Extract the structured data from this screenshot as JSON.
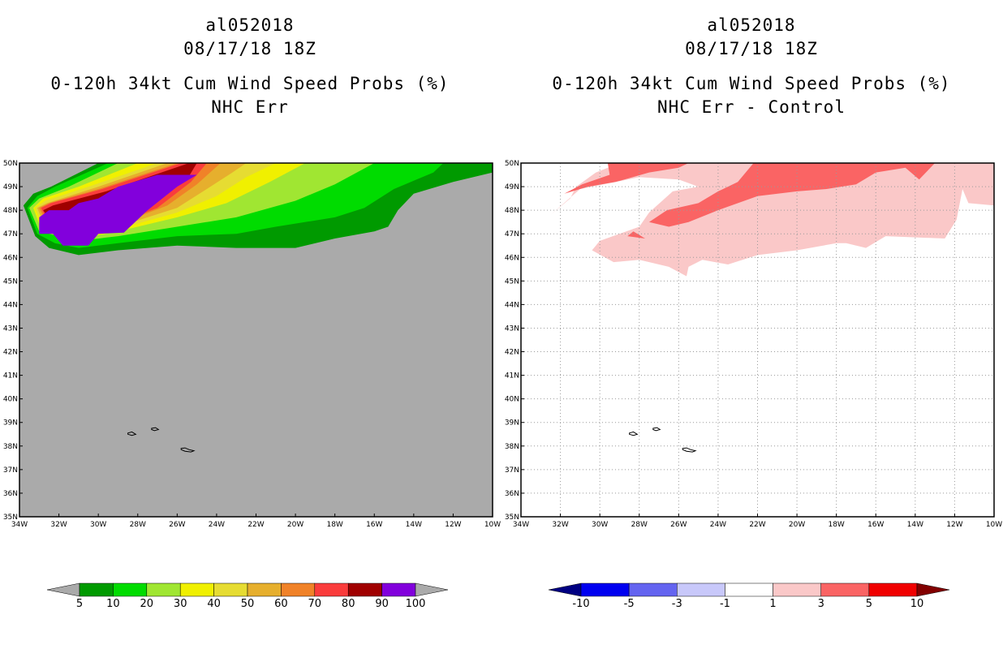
{
  "colors": {
    "land_gray": "#aaaaaa",
    "grid": "#9a9a9a"
  },
  "chart_data": [
    {
      "type": "heatmap",
      "storm_id": "al052018",
      "datetime": "08/17/18 18Z",
      "title": "0-120h 34kt Cum Wind Speed Probs (%)",
      "subtitle": "NHC Err",
      "xlim": [
        -34,
        -10
      ],
      "ylim": [
        35,
        50
      ],
      "x_ticks": [
        "34W",
        "32W",
        "30W",
        "28W",
        "26W",
        "24W",
        "22W",
        "20W",
        "18W",
        "16W",
        "14W",
        "12W",
        "10W"
      ],
      "y_ticks": [
        "35N",
        "36N",
        "37N",
        "38N",
        "39N",
        "40N",
        "41N",
        "42N",
        "43N",
        "44N",
        "45N",
        "46N",
        "47N",
        "48N",
        "49N",
        "50N"
      ],
      "grid": false,
      "colorbar": {
        "labels": [
          "5",
          "10",
          "20",
          "30",
          "40",
          "50",
          "60",
          "70",
          "80",
          "90",
          "100"
        ],
        "colors": [
          "#aaaaaa",
          "#009a00",
          "#00dc00",
          "#a0e632",
          "#f0f000",
          "#e6dc32",
          "#e6af2d",
          "#f08228",
          "#fa3c3c",
          "#a00000",
          "#8200dc",
          "#aaaaaa"
        ]
      },
      "contours": [
        {
          "level": 5,
          "color": "#009a00",
          "points": [
            [
              -33.2,
              46.9
            ],
            [
              -32.5,
              46.4
            ],
            [
              -31,
              46.1
            ],
            [
              -29,
              46.3
            ],
            [
              -26,
              46.5
            ],
            [
              -23,
              46.4
            ],
            [
              -20,
              46.4
            ],
            [
              -18,
              46.8
            ],
            [
              -16,
              47.1
            ],
            [
              -15.3,
              47.3
            ],
            [
              -14.8,
              48.0
            ],
            [
              -14,
              48.7
            ],
            [
              -12,
              49.2
            ],
            [
              -10,
              49.6
            ],
            [
              -10,
              50
            ],
            [
              -30,
              50
            ],
            [
              -32.4,
              49
            ],
            [
              -33.3,
              48.7
            ],
            [
              -33.8,
              48.2
            ]
          ]
        },
        {
          "level": 10,
          "color": "#00dc00",
          "points": [
            [
              -33.1,
              47.0
            ],
            [
              -32.2,
              46.6
            ],
            [
              -31,
              46.4
            ],
            [
              -29,
              46.6
            ],
            [
              -26,
              46.9
            ],
            [
              -23,
              47.0
            ],
            [
              -21,
              47.3
            ],
            [
              -18,
              47.7
            ],
            [
              -16.5,
              48.1
            ],
            [
              -15,
              48.9
            ],
            [
              -13,
              49.6
            ],
            [
              -12.5,
              50
            ],
            [
              -29.5,
              50
            ],
            [
              -32.2,
              49
            ],
            [
              -33.1,
              48.6
            ],
            [
              -33.6,
              48.1
            ]
          ]
        },
        {
          "level": 20,
          "color": "#a0e632",
          "points": [
            [
              -33,
              47.1
            ],
            [
              -31,
              46.7
            ],
            [
              -29,
              46.9
            ],
            [
              -26,
              47.3
            ],
            [
              -23,
              47.7
            ],
            [
              -20,
              48.4
            ],
            [
              -18,
              49.1
            ],
            [
              -16,
              50
            ],
            [
              -29,
              50
            ],
            [
              -31.5,
              49
            ],
            [
              -33,
              48.5
            ],
            [
              -33.5,
              48.1
            ]
          ]
        },
        {
          "level": 30,
          "color": "#f0f000",
          "points": [
            [
              -32.9,
              47.2
            ],
            [
              -31,
              46.8
            ],
            [
              -29,
              47.1
            ],
            [
              -26,
              47.7
            ],
            [
              -23.5,
              48.3
            ],
            [
              -21.3,
              49.2
            ],
            [
              -19.5,
              50
            ],
            [
              -28,
              50
            ],
            [
              -31,
              49
            ],
            [
              -32.8,
              48.5
            ],
            [
              -33.3,
              48.1
            ]
          ]
        },
        {
          "level": 40,
          "color": "#e6dc32",
          "points": [
            [
              -32.8,
              47.3
            ],
            [
              -31,
              47.0
            ],
            [
              -29,
              47.2
            ],
            [
              -26,
              47.9
            ],
            [
              -24,
              48.6
            ],
            [
              -22.5,
              49.4
            ],
            [
              -21,
              50
            ],
            [
              -27,
              50
            ],
            [
              -30.5,
              49
            ],
            [
              -32.7,
              48.4
            ],
            [
              -33.2,
              48.1
            ]
          ]
        },
        {
          "level": 50,
          "color": "#e6af2d",
          "points": [
            [
              -32.7,
              47.3
            ],
            [
              -31,
              47.1
            ],
            [
              -29,
              47.3
            ],
            [
              -26,
              48.1
            ],
            [
              -24.5,
              48.9
            ],
            [
              -23.2,
              49.6
            ],
            [
              -22.5,
              50
            ],
            [
              -26.5,
              50
            ],
            [
              -30,
              49
            ],
            [
              -32.6,
              48.3
            ],
            [
              -33.1,
              48.1
            ]
          ]
        },
        {
          "level": 60,
          "color": "#f08228",
          "points": [
            [
              -32.6,
              47.4
            ],
            [
              -31,
              47.2
            ],
            [
              -29,
              47.4
            ],
            [
              -26.5,
              48.2
            ],
            [
              -25,
              49.1
            ],
            [
              -23.8,
              50
            ],
            [
              -26,
              50
            ],
            [
              -30,
              48.9
            ],
            [
              -32.5,
              48.3
            ],
            [
              -33,
              48.1
            ]
          ]
        },
        {
          "level": 70,
          "color": "#fa3c3c",
          "points": [
            [
              -32.5,
              47.4
            ],
            [
              -31,
              47.25
            ],
            [
              -29,
              47.45
            ],
            [
              -27,
              48.1
            ],
            [
              -25.3,
              49.2
            ],
            [
              -24.5,
              50
            ],
            [
              -25.8,
              50
            ],
            [
              -29.8,
              48.9
            ],
            [
              -32.4,
              48.3
            ],
            [
              -32.9,
              48.1
            ]
          ]
        },
        {
          "level": 80,
          "color": "#a00000",
          "points": [
            [
              -32.4,
              47.5
            ],
            [
              -31,
              47.3
            ],
            [
              -29.2,
              47.5
            ],
            [
              -27.2,
              48.3
            ],
            [
              -25.5,
              49.3
            ],
            [
              -25,
              50
            ],
            [
              -25.4,
              50
            ],
            [
              -29.6,
              48.8
            ],
            [
              -32.3,
              48.2
            ],
            [
              -32.8,
              48.0
            ]
          ]
        },
        {
          "level": 90,
          "color": "#8200dc",
          "points": [
            [
              -33,
              47
            ],
            [
              -32.3,
              47
            ],
            [
              -31.8,
              46.5
            ],
            [
              -30.5,
              46.5
            ],
            [
              -30,
              47
            ],
            [
              -28.7,
              47.05
            ],
            [
              -27.5,
              48.0
            ],
            [
              -26,
              49.0
            ],
            [
              -25,
              49.5
            ],
            [
              -27,
              49.5
            ],
            [
              -29,
              49
            ],
            [
              -30,
              48.5
            ],
            [
              -31,
              48.3
            ],
            [
              -31.5,
              48
            ],
            [
              -32.5,
              48
            ],
            [
              -33,
              47.7
            ]
          ]
        }
      ],
      "islands": "Azores"
    },
    {
      "type": "heatmap",
      "storm_id": "al052018",
      "datetime": "08/17/18 18Z",
      "title": "0-120h 34kt Cum Wind Speed Probs (%)",
      "subtitle": "NHC Err - Control",
      "xlim": [
        -34,
        -10
      ],
      "ylim": [
        35,
        50
      ],
      "x_ticks": [
        "34W",
        "32W",
        "30W",
        "28W",
        "26W",
        "24W",
        "22W",
        "20W",
        "18W",
        "16W",
        "14W",
        "12W",
        "10W"
      ],
      "y_ticks": [
        "35N",
        "36N",
        "37N",
        "38N",
        "39N",
        "40N",
        "41N",
        "42N",
        "43N",
        "44N",
        "45N",
        "46N",
        "47N",
        "48N",
        "49N",
        "50N"
      ],
      "grid": true,
      "colorbar": {
        "labels": [
          "-10",
          "-5",
          "-3",
          "-1",
          "1",
          "3",
          "5",
          "10"
        ],
        "colors": [
          "#000082",
          "#0000f0",
          "#6464f0",
          "#c8c8fa",
          "#ffffff",
          "#fac8c8",
          "#fa6464",
          "#f00000",
          "#820000"
        ]
      },
      "contours": [
        {
          "level": 1,
          "color": "#fac8c8",
          "points": [
            [
              -32.5,
              47.8
            ],
            [
              -31.5,
              48.5
            ],
            [
              -31.2,
              49.0
            ],
            [
              -30.2,
              49.6
            ],
            [
              -29,
              50
            ],
            [
              -10,
              50
            ],
            [
              -10,
              48.2
            ],
            [
              -11.3,
              48.3
            ],
            [
              -11.6,
              48.9
            ],
            [
              -11.9,
              47.6
            ],
            [
              -12.5,
              46.8
            ],
            [
              -15.5,
              46.9
            ],
            [
              -16.5,
              46.4
            ],
            [
              -17.5,
              46.6
            ],
            [
              -18,
              46.6
            ],
            [
              -20,
              46.3
            ],
            [
              -22,
              46.1
            ],
            [
              -23.5,
              45.7
            ],
            [
              -24.8,
              45.9
            ],
            [
              -25.5,
              45.6
            ],
            [
              -25.6,
              45.2
            ],
            [
              -26.5,
              45.6
            ],
            [
              -28,
              45.9
            ],
            [
              -29.3,
              45.8
            ],
            [
              -30.4,
              46.3
            ],
            [
              -30,
              46.7
            ],
            [
              -28,
              47.3
            ],
            [
              -27.5,
              47.9
            ],
            [
              -26.3,
              48.8
            ],
            [
              -25,
              49.0
            ],
            [
              -26,
              49.3
            ],
            [
              -28,
              49.4
            ],
            [
              -31,
              48.9
            ]
          ]
        },
        {
          "level": 3,
          "color": "#fa6464",
          "points": [
            [
              -29.6,
              50
            ],
            [
              -29.5,
              49.5
            ],
            [
              -30.9,
              49.1
            ],
            [
              -31.8,
              48.7
            ],
            [
              -30.6,
              49.0
            ],
            [
              -29.2,
              49.2
            ],
            [
              -27.5,
              49.6
            ],
            [
              -26,
              49.8
            ],
            [
              -25.5,
              50
            ]
          ]
        },
        {
          "level": 3,
          "color": "#fa6464",
          "points": [
            [
              -27.5,
              47.5
            ],
            [
              -26.6,
              48
            ],
            [
              -25,
              48.3
            ],
            [
              -24,
              48.8
            ],
            [
              -23,
              49.2
            ],
            [
              -22.2,
              50
            ],
            [
              -13,
              50
            ],
            [
              -13.8,
              49.3
            ],
            [
              -14.5,
              49.8
            ],
            [
              -16,
              49.6
            ],
            [
              -17,
              49.1
            ],
            [
              -18.5,
              48.9
            ],
            [
              -20,
              48.8
            ],
            [
              -22,
              48.6
            ],
            [
              -24,
              48.0
            ],
            [
              -25.5,
              47.5
            ],
            [
              -26.5,
              47.3
            ]
          ]
        },
        {
          "level": 3,
          "color": "#fa6464",
          "points": [
            [
              -28.3,
              47.1
            ],
            [
              -27.7,
              46.8
            ],
            [
              -28.6,
              46.9
            ]
          ]
        }
      ],
      "islands": "Azores"
    }
  ]
}
